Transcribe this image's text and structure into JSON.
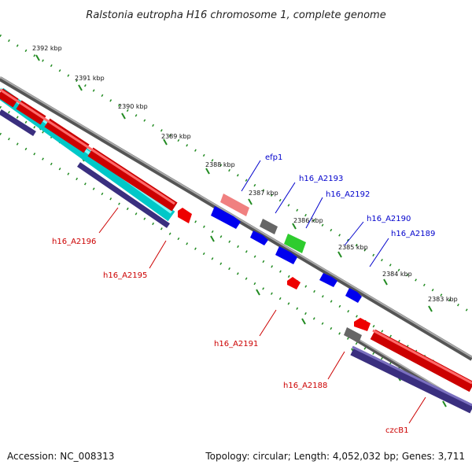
{
  "title": "Ralstonia eutropha H16 chromosome 1, complete genome",
  "ruler_labels": [
    "2392 kbp",
    "2391 kbp",
    "2390 kbp",
    "2389 kbp",
    "2388 kbp",
    "2387 kbp",
    "2386 kbp",
    "2385 kbp",
    "2384 kbp",
    "2383 kbp"
  ],
  "genes": {
    "efp1": "efp1",
    "h16_A2193": "h16_A2193",
    "h16_A2192": "h16_A2192",
    "h16_A2190": "h16_A2190",
    "h16_A2189": "h16_A2189",
    "h16_A2196": "h16_A2196",
    "h16_A2195": "h16_A2195",
    "h16_A2191": "h16_A2191",
    "h16_A2188": "h16_A2188",
    "czcB1": "czcB1"
  },
  "colors": {
    "forward_cds": "#0000ee",
    "reverse_cds": "#ee0000",
    "gray_feature": "#666666",
    "green_feature": "#2ecc2e",
    "cyan_feature": "#00e5e5",
    "navy_feature": "#4a3f8f",
    "pink_feature": "#f08080",
    "tick_green": "#228b22",
    "backbone": "#888888"
  },
  "footer": {
    "accession": "Accession: NC_008313",
    "topology": "Topology: circular; Length: 4,052,032 bp; Genes: 3,711"
  }
}
